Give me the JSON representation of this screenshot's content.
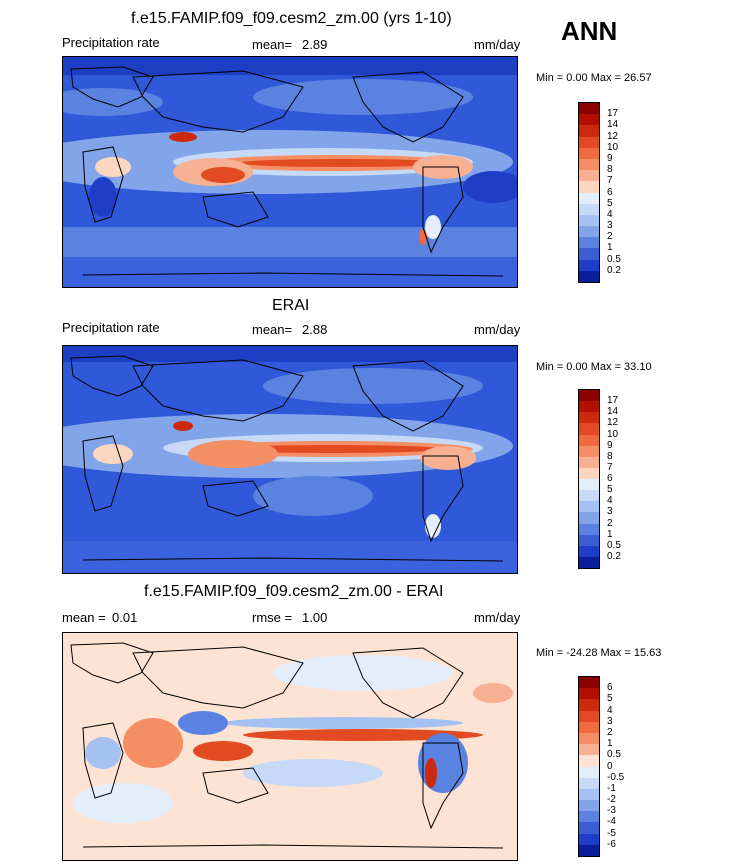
{
  "season_label": "ANN",
  "panels": [
    {
      "title": "f.e15.FAMIP.f09_f09.cesm2_zm.00 (yrs 1-10)",
      "left_label": "Precipitation rate",
      "stat_label": "mean=",
      "stat_value": "2.89",
      "units": "mm/day",
      "minmax_text": "Min =   0.00 Max =  26.57",
      "colorbar": {
        "labels": [
          "17",
          "14",
          "12",
          "10",
          "9",
          "8",
          "7",
          "6",
          "5",
          "4",
          "3",
          "2",
          "1",
          "0.5",
          "0.2"
        ],
        "colors": [
          "#8b0000",
          "#b11000",
          "#cc2a0e",
          "#e24a21",
          "#ef6b3f",
          "#f48e64",
          "#f7b091",
          "#fbd6c0",
          "#e4eefb",
          "#c6d9f6",
          "#a5c1f1",
          "#82a5ea",
          "#5a82e0",
          "#3a5ed6",
          "#1e3ec7",
          "#081e9c"
        ]
      }
    },
    {
      "title": "ERAI",
      "left_label": "Precipitation rate",
      "stat_label": "mean=",
      "stat_value": "2.88",
      "units": "mm/day",
      "minmax_text": "Min =   0.00 Max =  33.10",
      "colorbar": {
        "labels": [
          "17",
          "14",
          "12",
          "10",
          "9",
          "8",
          "7",
          "6",
          "5",
          "4",
          "3",
          "2",
          "1",
          "0.5",
          "0.2"
        ],
        "colors": [
          "#8b0000",
          "#b11000",
          "#cc2a0e",
          "#e24a21",
          "#ef6b3f",
          "#f48e64",
          "#f7b091",
          "#fbd6c0",
          "#e4eefb",
          "#c6d9f6",
          "#a5c1f1",
          "#82a5ea",
          "#5a82e0",
          "#3a5ed6",
          "#1e3ec7",
          "#081e9c"
        ]
      }
    },
    {
      "title": "f.e15.FAMIP.f09_f09.cesm2_zm.00 - ERAI",
      "left_label": "mean =",
      "left_value": "0.01",
      "stat_label": "rmse =",
      "stat_value": "1.00",
      "units": "mm/day",
      "minmax_text": "Min = -24.28 Max =  15.63",
      "colorbar": {
        "labels": [
          "6",
          "5",
          "4",
          "3",
          "2",
          "1",
          "0.5",
          "0",
          "-0.5",
          "-1",
          "-2",
          "-3",
          "-4",
          "-5",
          "-6"
        ],
        "colors": [
          "#8b0000",
          "#b11000",
          "#cc2a0e",
          "#e24a21",
          "#ef6b3f",
          "#f48e64",
          "#f7b091",
          "#fde3d3",
          "#e4eefb",
          "#c6d9f6",
          "#a5c1f1",
          "#82a5ea",
          "#5a82e0",
          "#3a5ed6",
          "#1e3ec7",
          "#081e9c"
        ]
      }
    }
  ]
}
